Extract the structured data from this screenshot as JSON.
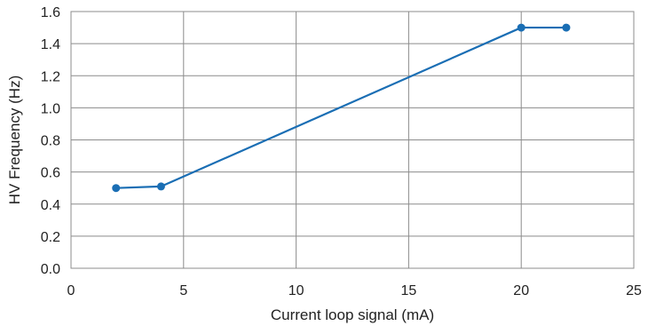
{
  "chart_data": {
    "type": "line",
    "title": "",
    "xlabel": "Current loop signal (mA)",
    "ylabel": "HV Frequency (Hz)",
    "xlim": [
      0,
      25
    ],
    "ylim": [
      0,
      1.6
    ],
    "x_ticks": [
      "0",
      "5",
      "10",
      "15",
      "20",
      "25"
    ],
    "y_ticks": [
      "0.0",
      "0.2",
      "0.4",
      "0.6",
      "0.8",
      "1.0",
      "1.2",
      "1.4",
      "1.6"
    ],
    "grid": true,
    "series": [
      {
        "color": "#1a6eb4",
        "points": [
          {
            "x": 2,
            "y": 0.5
          },
          {
            "x": 4,
            "y": 0.51
          },
          {
            "x": 20,
            "y": 1.5
          },
          {
            "x": 22,
            "y": 1.5
          }
        ]
      }
    ]
  }
}
